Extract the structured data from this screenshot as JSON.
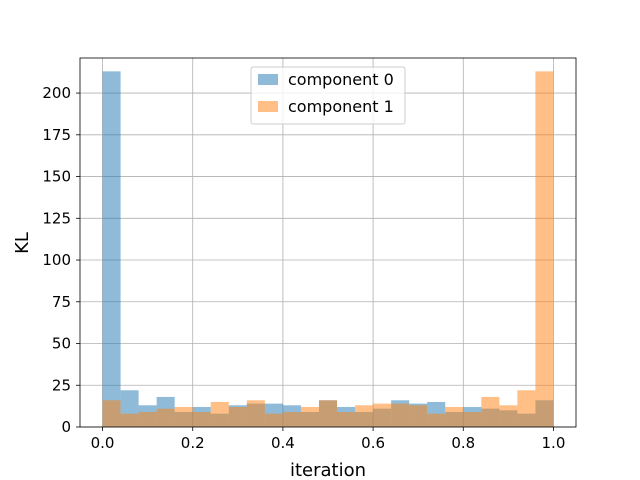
{
  "chart_data": {
    "type": "bar",
    "subtype": "overlaid-histogram",
    "xlabel": "iteration",
    "ylabel": "KL",
    "xlim": [
      -0.05,
      1.05
    ],
    "ylim": [
      0,
      221
    ],
    "x_ticks": [
      0.0,
      0.2,
      0.4,
      0.6,
      0.8,
      1.0
    ],
    "x_tick_labels": [
      "0.0",
      "0.2",
      "0.4",
      "0.6",
      "0.8",
      "1.0"
    ],
    "y_ticks": [
      0,
      25,
      50,
      75,
      100,
      125,
      150,
      175,
      200
    ],
    "y_tick_labels": [
      "0",
      "25",
      "50",
      "75",
      "100",
      "125",
      "150",
      "175",
      "200"
    ],
    "grid": true,
    "legend_position": "top-center",
    "bin_edges": [
      0.0,
      0.04,
      0.08,
      0.12,
      0.16,
      0.2,
      0.24,
      0.28,
      0.32,
      0.36,
      0.4,
      0.44,
      0.48,
      0.52,
      0.56,
      0.6,
      0.64,
      0.68,
      0.72,
      0.76,
      0.8,
      0.84,
      0.88,
      0.92,
      0.96,
      1.0
    ],
    "series": [
      {
        "name": "component 0",
        "color": "#1f77b4",
        "alpha": 0.5,
        "values": [
          213,
          22,
          13,
          18,
          9,
          12,
          8,
          13,
          14,
          14,
          13,
          9,
          16,
          12,
          9,
          11,
          16,
          14,
          15,
          9,
          12,
          11,
          10,
          8,
          16
        ]
      },
      {
        "name": "component 1",
        "color": "#ff7f0e",
        "alpha": 0.5,
        "values": [
          16,
          8,
          9,
          11,
          12,
          9,
          15,
          12,
          16,
          8,
          9,
          12,
          16,
          9,
          13,
          14,
          14,
          13,
          8,
          12,
          9,
          18,
          13,
          22,
          213
        ]
      }
    ]
  }
}
